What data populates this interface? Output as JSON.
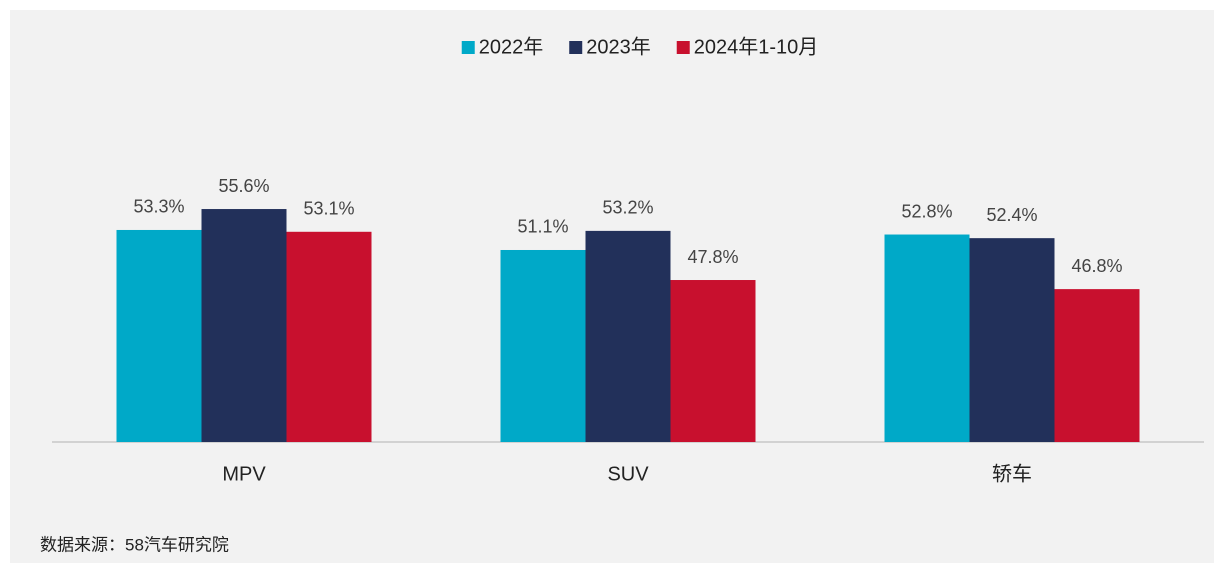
{
  "chart_data": {
    "type": "bar",
    "categories": [
      "MPV",
      "SUV",
      "轿车"
    ],
    "series": [
      {
        "name": "2022年",
        "color": "#00a9c8",
        "values": [
          53.3,
          51.1,
          52.8
        ],
        "value_labels": [
          "53.3%",
          "51.1%",
          "52.8%"
        ]
      },
      {
        "name": "2023年",
        "color": "#22305a",
        "values": [
          55.6,
          53.2,
          52.4
        ],
        "value_labels": [
          "55.6%",
          "53.2%",
          "52.4%"
        ]
      },
      {
        "name": "2024年1-10月",
        "color": "#c8102e",
        "values": [
          53.1,
          47.8,
          46.8
        ],
        "value_labels": [
          "53.1%",
          "47.8%",
          "46.8%"
        ]
      }
    ],
    "ylim": [
      30,
      70
    ],
    "legend": "top",
    "source": "数据来源：58汽车研究院"
  }
}
